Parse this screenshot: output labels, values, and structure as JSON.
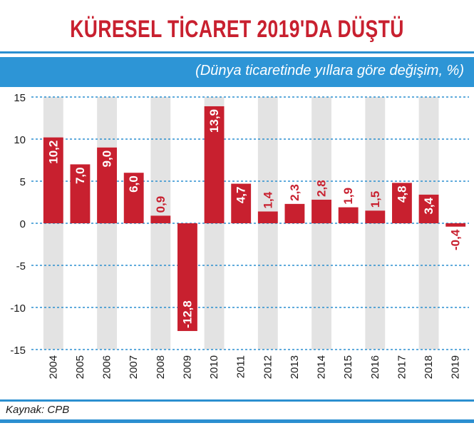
{
  "title": "KÜRESEL TİCARET 2019'DA DÜŞTÜ",
  "subtitle": "(Dünya ticaretinde yıllara göre değişim, %)",
  "source": "Kaynak: CPB",
  "colors": {
    "bar": "#c8202f",
    "band": "#e3e3e3",
    "grid": "#2b8fd0",
    "accent": "#2d95d6",
    "title": "#c8202f"
  },
  "chart_data": {
    "type": "bar",
    "categories": [
      "2004",
      "2005",
      "2006",
      "2007",
      "2008",
      "2009",
      "2010",
      "2011",
      "2012",
      "2013",
      "2014",
      "2015",
      "2016",
      "2017",
      "2018",
      "2019"
    ],
    "values": [
      10.2,
      7.0,
      9.0,
      6.0,
      0.9,
      -12.8,
      13.9,
      4.7,
      1.4,
      2.3,
      2.8,
      1.9,
      1.5,
      4.8,
      3.4,
      -0.4
    ],
    "labels": [
      "10,2",
      "7,0",
      "9,0",
      "6,0",
      "0,9",
      "-12,8",
      "13,9",
      "4,7",
      "1,4",
      "2,3",
      "2,8",
      "1,9",
      "1,5",
      "4,8",
      "3,4",
      "-0,4"
    ],
    "yticks": [
      "15",
      "10",
      "5",
      "0",
      "-5",
      "-10",
      "-15"
    ],
    "ylim": [
      -15,
      15
    ],
    "grid": true
  }
}
